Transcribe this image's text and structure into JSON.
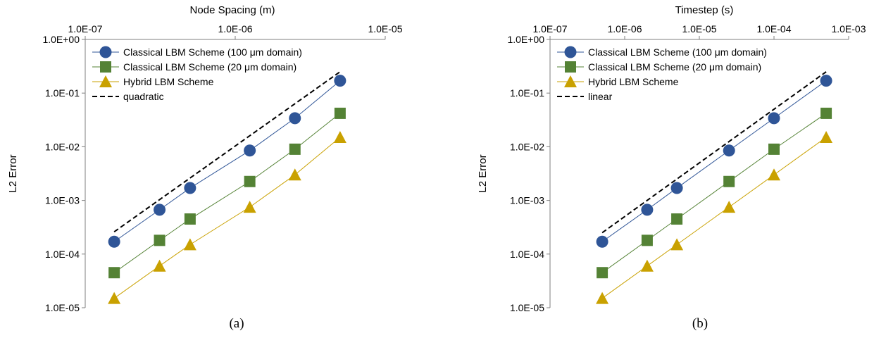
{
  "colors": {
    "classical_100": "#2F5597",
    "classical_20": "#548235",
    "hybrid": "#C9A100",
    "reference": "#000000"
  },
  "chart_data": [
    {
      "type": "scatter",
      "panel_label": "(a)",
      "xlabel": "Node Spacing (m)",
      "ylabel": "L2 Error",
      "x_scale": "log",
      "y_scale": "log",
      "xlim": [
        1e-07,
        1e-05
      ],
      "ylim": [
        1e-05,
        1
      ],
      "x_axis_position": "top",
      "x_ticks": [
        "1.0E-07",
        "1.0E-06",
        "1.0E-05"
      ],
      "y_ticks": [
        "1.0E+00",
        "1.0E-01",
        "1.0E-02",
        "1.0E-03",
        "1.0E-04",
        "1.0E-05"
      ],
      "grid": false,
      "legend_position": "top-left",
      "series": [
        {
          "name": "Classical LBM Scheme (100 μm domain)",
          "marker": "circle",
          "color_key": "classical_100",
          "x": [
            1.56e-07,
            3.13e-07,
            5e-07,
            1.25e-06,
            2.5e-06,
            5e-06
          ],
          "y": [
            0.00017,
            0.00067,
            0.0017,
            0.0085,
            0.034,
            0.17
          ]
        },
        {
          "name": "Classical LBM Scheme (20 μm domain)",
          "marker": "square",
          "color_key": "classical_20",
          "x": [
            1.56e-07,
            3.13e-07,
            5e-07,
            1.25e-06,
            2.5e-06,
            5e-06
          ],
          "y": [
            4.5e-05,
            0.00018,
            0.00045,
            0.00225,
            0.009,
            0.042
          ]
        },
        {
          "name": "Hybrid LBM Scheme",
          "marker": "triangle",
          "color_key": "hybrid",
          "x": [
            1.56e-07,
            3.13e-07,
            5e-07,
            1.25e-06,
            2.5e-06,
            5e-06
          ],
          "y": [
            1.5e-05,
            6e-05,
            0.00015,
            0.00075,
            0.003,
            0.015
          ]
        },
        {
          "name": "quadratic",
          "marker": "none",
          "style": "dashed",
          "color_key": "reference",
          "x": [
            1.56e-07,
            5e-06
          ],
          "y": [
            0.00026,
            0.25
          ]
        }
      ]
    },
    {
      "type": "scatter",
      "panel_label": "(b)",
      "xlabel": "Timestep (s)",
      "ylabel": "L2 Error",
      "x_scale": "log",
      "y_scale": "log",
      "xlim": [
        1e-07,
        0.001
      ],
      "ylim": [
        1e-05,
        1
      ],
      "x_axis_position": "top",
      "x_ticks": [
        "1.0E-07",
        "1.0E-06",
        "1.0E-05",
        "1.0E-04",
        "1.0E-03"
      ],
      "y_ticks": [
        "1.0E+00",
        "1.0E-01",
        "1.0E-02",
        "1.0E-03",
        "1.0E-04",
        "1.0E-05"
      ],
      "grid": false,
      "legend_position": "top-left",
      "series": [
        {
          "name": "Classical LBM Scheme (100 μm domain)",
          "marker": "circle",
          "color_key": "classical_100",
          "x": [
            5e-07,
            2e-06,
            5e-06,
            2.5e-05,
            0.0001,
            0.0005
          ],
          "y": [
            0.00017,
            0.00067,
            0.0017,
            0.0085,
            0.034,
            0.17
          ]
        },
        {
          "name": "Classical LBM Scheme (20 μm domain)",
          "marker": "square",
          "color_key": "classical_20",
          "x": [
            5e-07,
            2e-06,
            5e-06,
            2.5e-05,
            0.0001,
            0.0005
          ],
          "y": [
            4.5e-05,
            0.00018,
            0.00045,
            0.00225,
            0.009,
            0.042
          ]
        },
        {
          "name": "Hybrid LBM Scheme",
          "marker": "triangle",
          "color_key": "hybrid",
          "x": [
            5e-07,
            2e-06,
            5e-06,
            2.5e-05,
            0.0001,
            0.0005
          ],
          "y": [
            1.5e-05,
            6e-05,
            0.00015,
            0.00075,
            0.003,
            0.015
          ]
        },
        {
          "name": "linear",
          "marker": "none",
          "style": "dashed",
          "color_key": "reference",
          "x": [
            5e-07,
            0.0005
          ],
          "y": [
            0.00025,
            0.25
          ]
        }
      ]
    }
  ]
}
